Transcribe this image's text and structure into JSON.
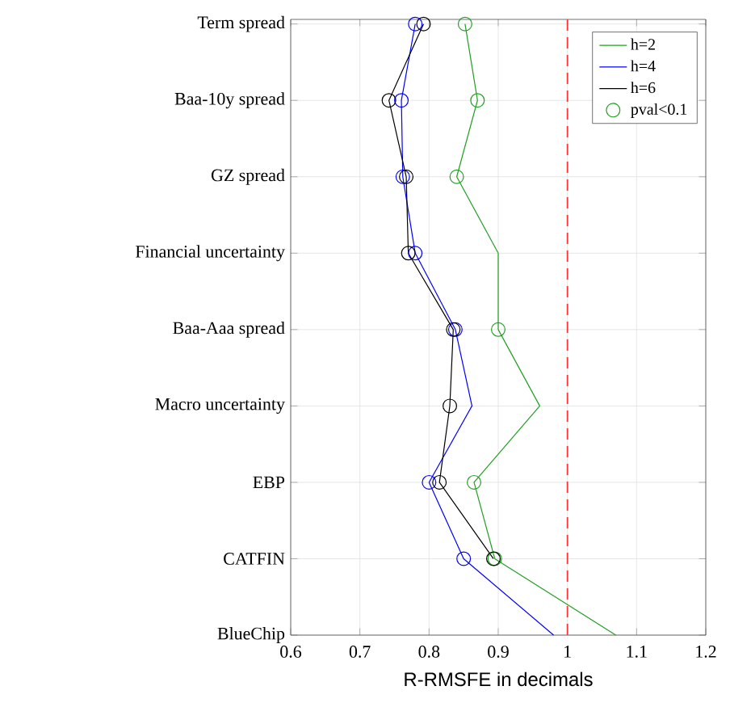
{
  "chart_data": {
    "type": "line",
    "orientation": "horizontal",
    "xlabel": "R-RMSFE in decimals",
    "categories": [
      "Term spread",
      "Baa-10y spread",
      "GZ spread",
      "Financial uncertainty",
      "Baa-Aaa spread",
      "Macro uncertainty",
      "EBP",
      "CATFIN",
      "BlueChip"
    ],
    "series": [
      {
        "name": "h=2",
        "color": "#21a021",
        "values": [
          0.852,
          0.87,
          0.84,
          0.9,
          0.9,
          0.96,
          0.865,
          0.895,
          1.07
        ]
      },
      {
        "name": "h=4",
        "color": "#0000ff",
        "values": [
          0.78,
          0.76,
          0.762,
          0.78,
          0.838,
          0.862,
          0.8,
          0.85,
          0.98
        ]
      },
      {
        "name": "h=6",
        "color": "#000000",
        "values": [
          0.792,
          0.742,
          0.767,
          0.77,
          0.835,
          0.83,
          0.815,
          0.893,
          null
        ]
      },
      {
        "name": "pval<0.1",
        "type": "scatter",
        "marker": "circle",
        "color": "#21a021",
        "values": [
          0.852,
          0.87,
          0.84,
          null,
          0.9,
          null,
          0.865,
          0.895,
          null
        ]
      },
      {
        "type": "scatter",
        "marker": "circle",
        "color": "#0000ff",
        "values": [
          0.78,
          0.76,
          0.762,
          0.78,
          0.838,
          null,
          0.8,
          0.85,
          null
        ]
      },
      {
        "type": "scatter",
        "marker": "circle",
        "color": "#000000",
        "values": [
          0.792,
          0.742,
          0.767,
          0.77,
          0.835,
          0.83,
          0.815,
          0.893,
          null
        ]
      }
    ],
    "xlim": [
      0.6,
      1.2
    ],
    "xticks": [
      0.6,
      0.7,
      0.8,
      0.9,
      1,
      1.1,
      1.2
    ],
    "ref_lines": [
      {
        "axis": "x",
        "value": 1,
        "color": "#ff3333",
        "line_style": "dashed"
      }
    ],
    "grid": true,
    "legend": "top right"
  }
}
